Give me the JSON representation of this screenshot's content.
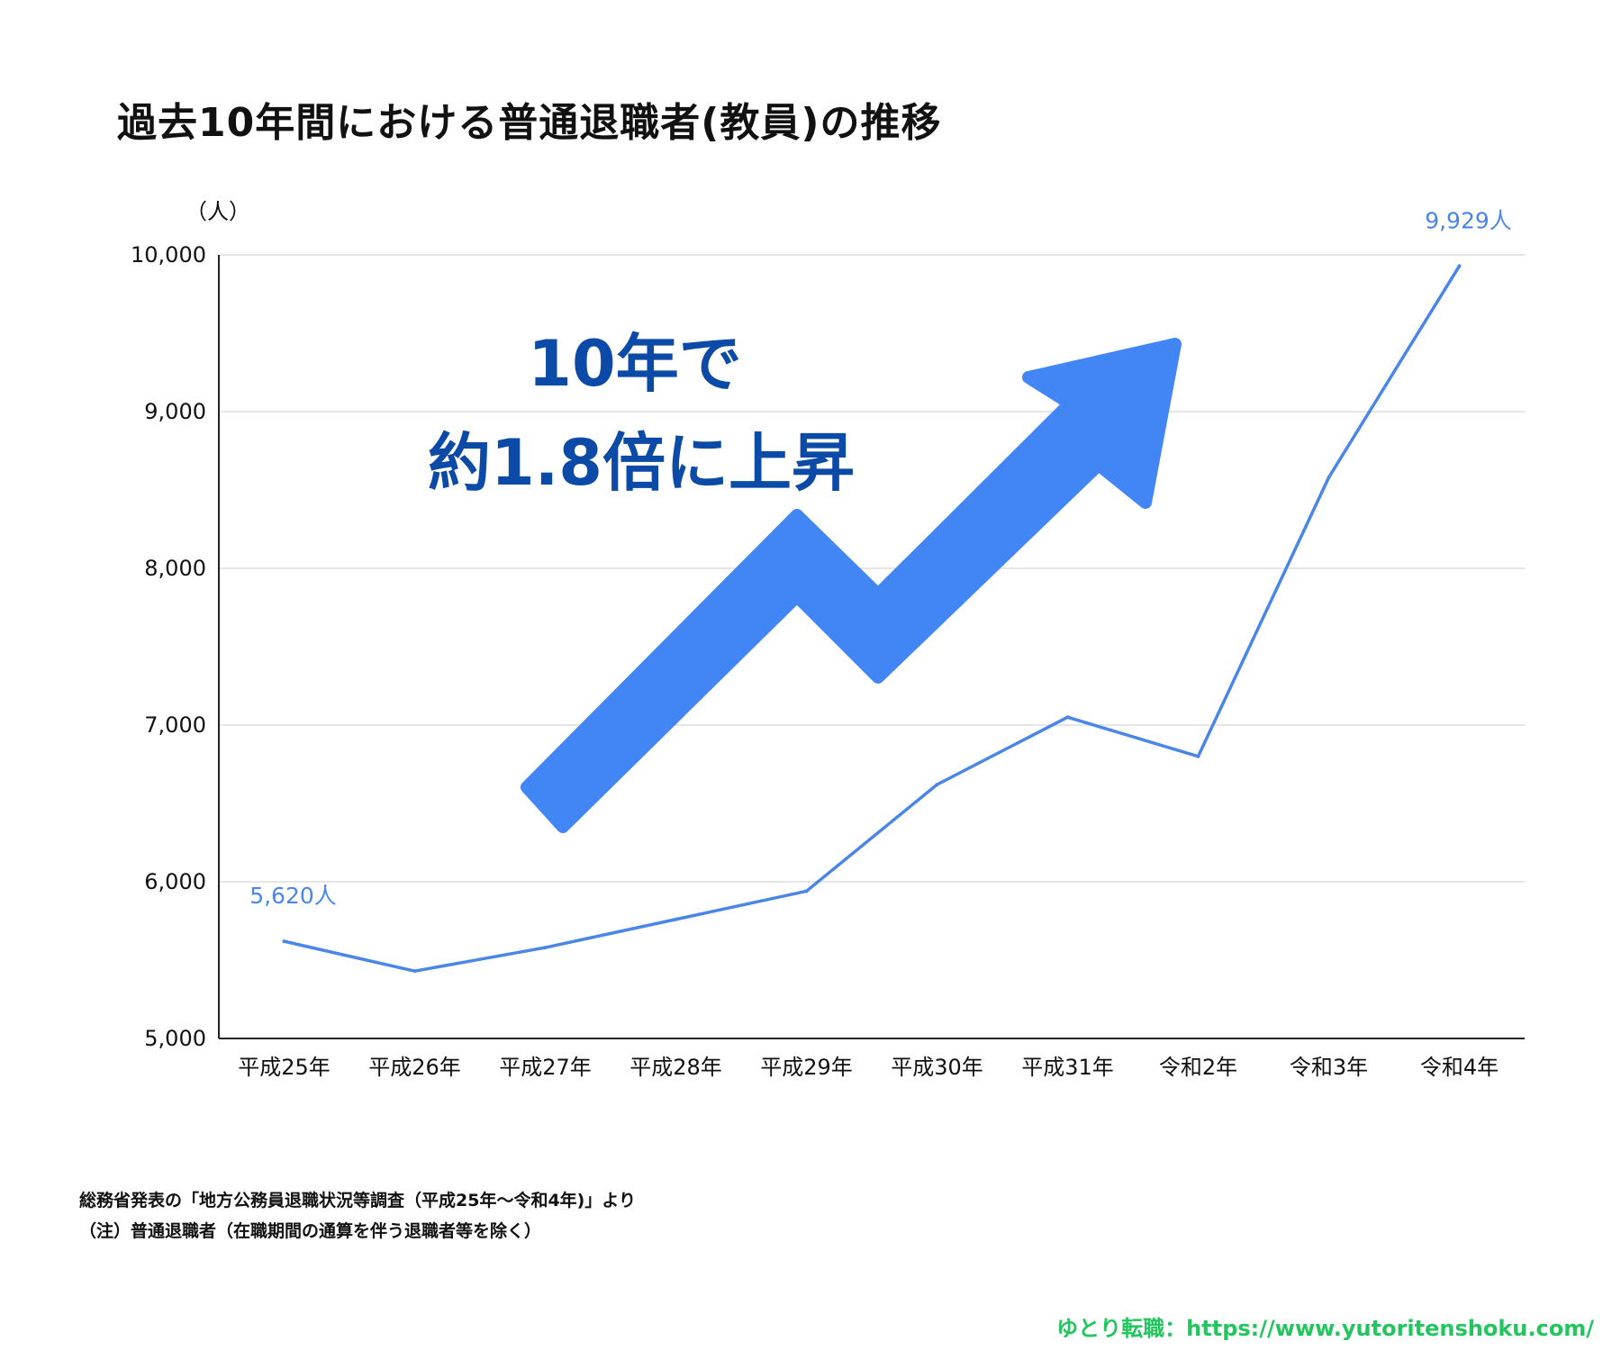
{
  "chart_data": {
    "type": "line",
    "title": "過去10年間における普通退職者(教員)の推移",
    "unit_label": "（人）",
    "categories": [
      "平成25年",
      "平成26年",
      "平成27年",
      "平成28年",
      "平成29年",
      "平成30年",
      "平成31年",
      "令和2年",
      "令和3年",
      "令和4年"
    ],
    "series": [
      {
        "values": [
          5620,
          5430,
          5580,
          5760,
          5940,
          6620,
          7050,
          6800,
          8580,
          9929
        ]
      }
    ],
    "ylim": [
      5000,
      10000
    ],
    "yticks": [
      5000,
      6000,
      7000,
      8000,
      9000,
      10000
    ],
    "ytick_labels": [
      "5,000",
      "6,000",
      "7,000",
      "8,000",
      "9,000",
      "10,000"
    ],
    "grid": true,
    "data_labels": [
      {
        "index": 0,
        "text": "5,620人"
      },
      {
        "index": 9,
        "text": "9,929人"
      }
    ],
    "annotation": {
      "line1": "10年で",
      "line2": "約1.8倍に上昇"
    },
    "colors": {
      "line": "#4a86e8",
      "arrow": "#4285f4",
      "annotation_text": "#0b4aa6",
      "grid": "#dddddd",
      "axis": "#222222"
    }
  },
  "footer": {
    "source": "総務省発表の「地方公務員退職状況等調査（平成25年〜令和4年)」より",
    "note": "（注）普通退職者（在職期間の通算を伴う退職者等を除く）",
    "credit": "ゆとり転職：https://www.yutoritenshoku.com/"
  }
}
